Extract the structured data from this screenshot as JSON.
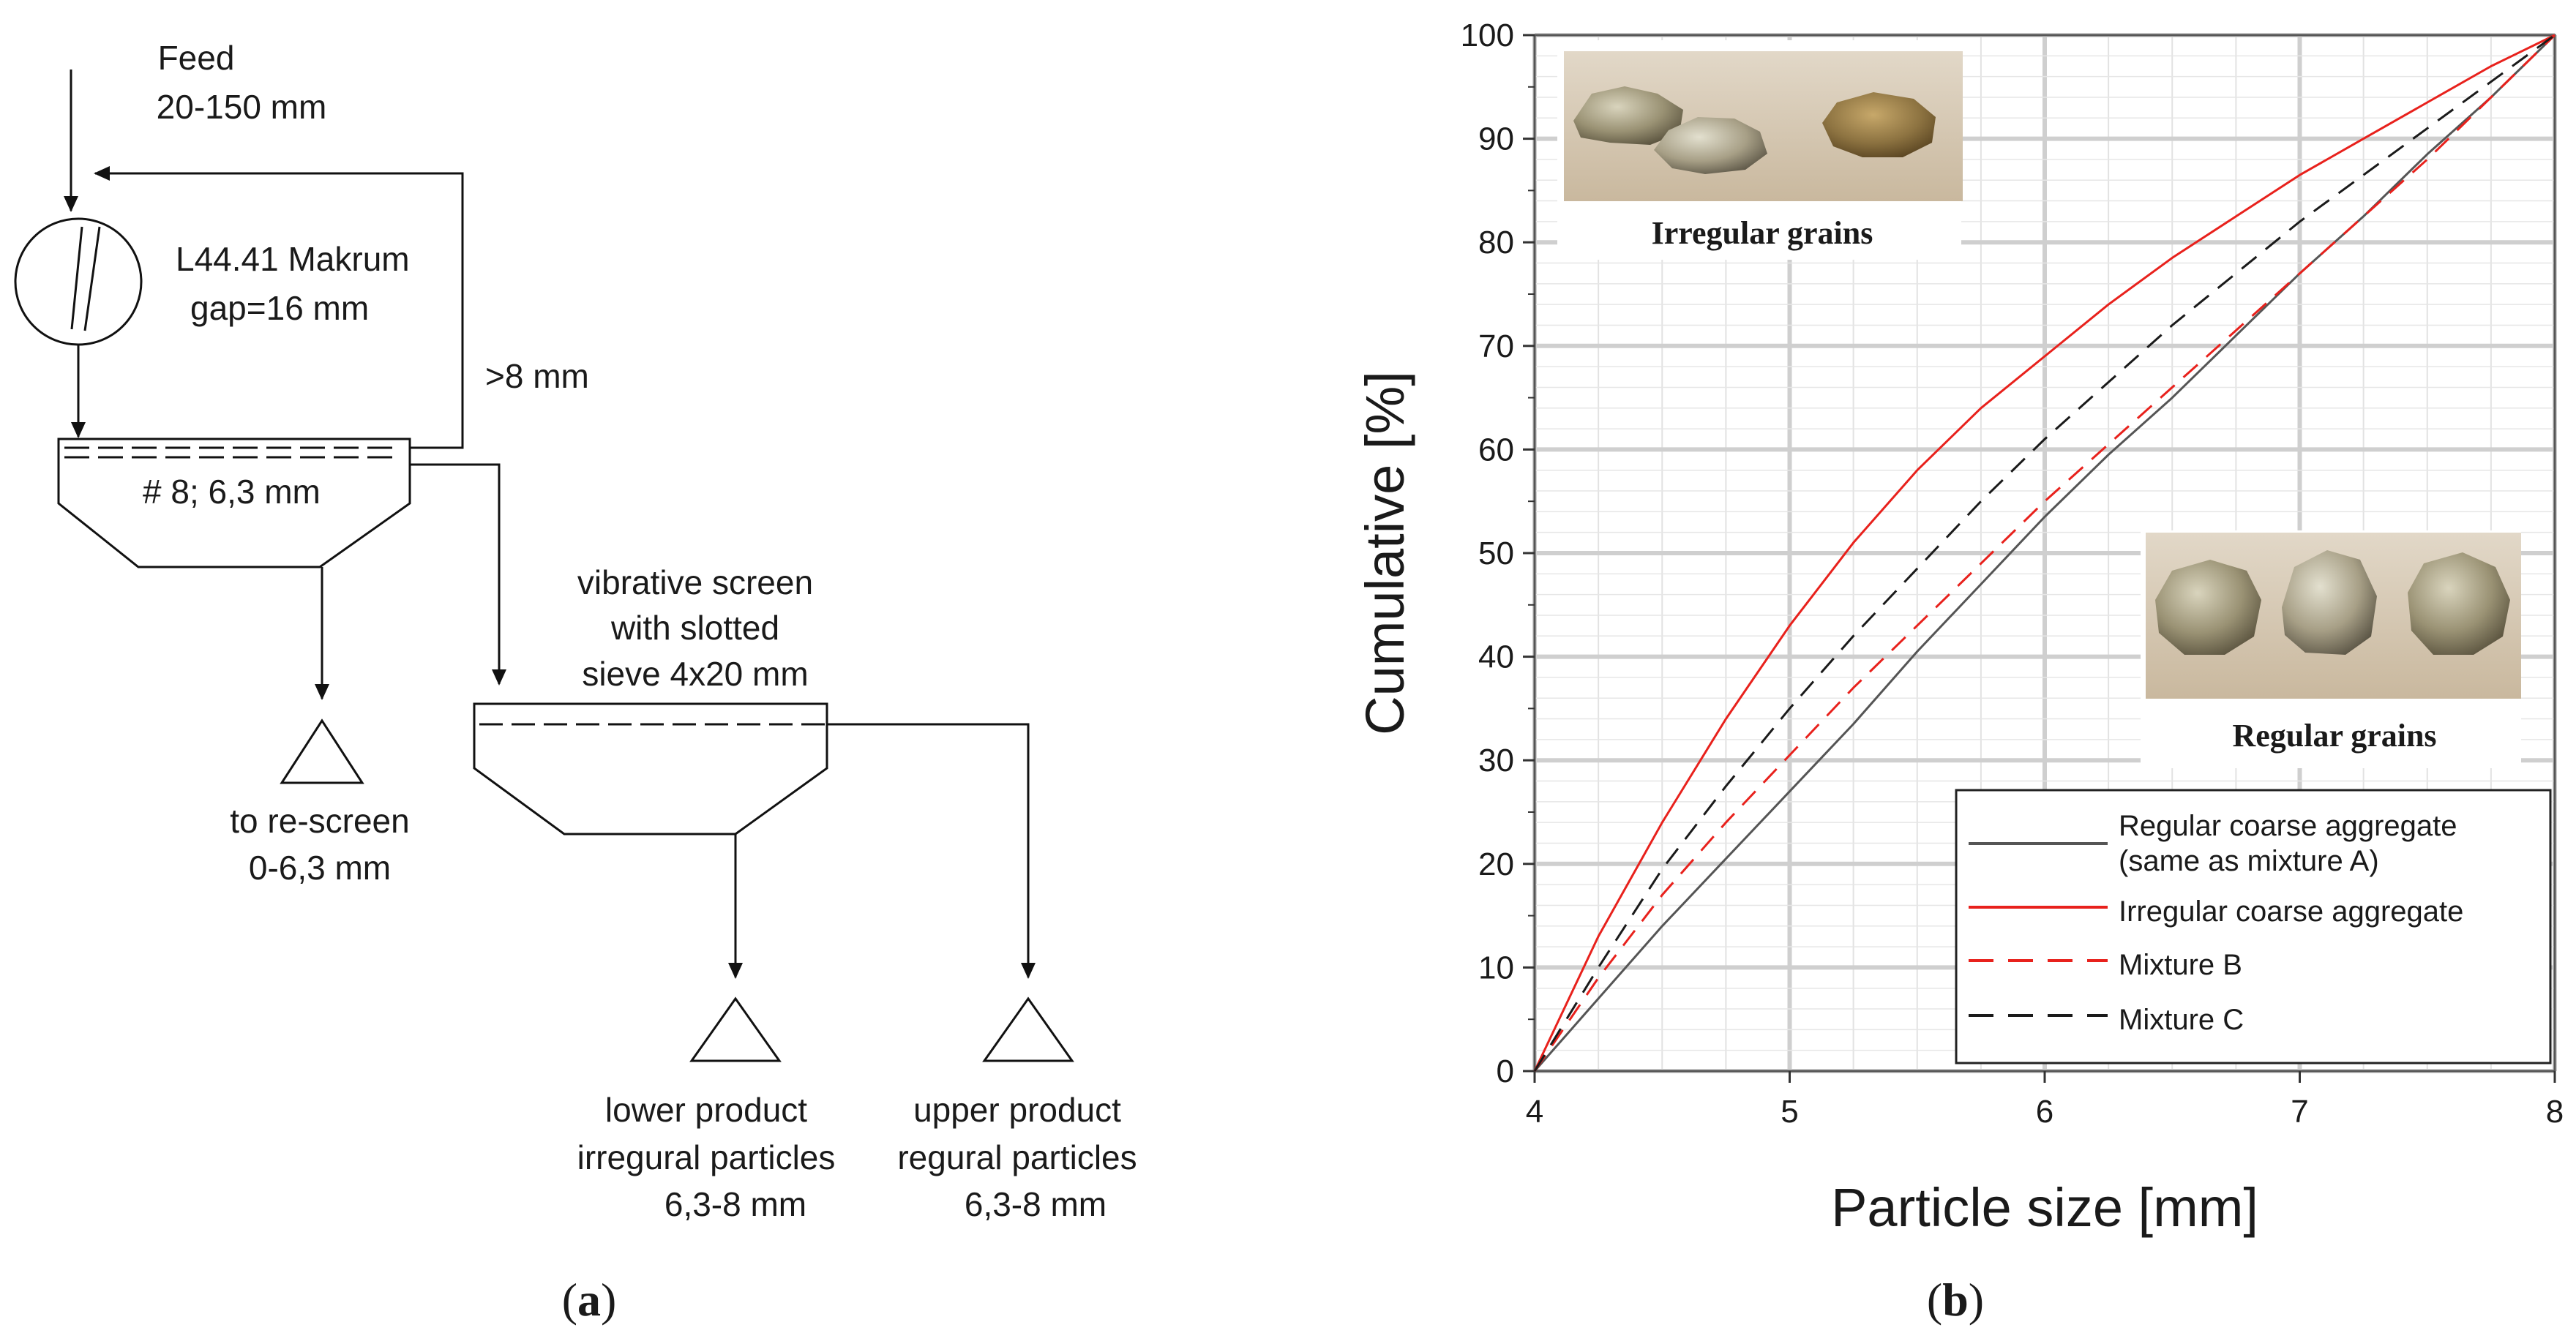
{
  "flowsheet": {
    "feed_label": "Feed",
    "feed_size": "20-150 mm",
    "crusher_name": "L44.41 Makrum",
    "crusher_gap": "gap=16 mm",
    "recycle_label": ">8 mm",
    "screen1_label": "# 8; 6,3 mm",
    "vib_screen_line1": "vibrative screen",
    "vib_screen_line2": "with slotted",
    "vib_screen_line3": "sieve 4x20 mm",
    "rescreen_line1": "to re-screen",
    "rescreen_line2": "0-6,3 mm",
    "lower_line1": "lower product",
    "lower_line2": "irregural particles",
    "lower_line3": "6,3-8 mm",
    "upper_line1": "upper product",
    "upper_line2": "regural particles",
    "upper_line3": "6,3-8 mm"
  },
  "panel_labels": {
    "a_open": "(",
    "a_letter": "a",
    "a_close": ")",
    "b_open": "(",
    "b_letter": "b",
    "b_close": ")"
  },
  "photos": {
    "irregular_caption": "Irregular grains",
    "regular_caption": "Regular grains"
  },
  "chart_data": {
    "type": "line",
    "xlabel": "Particle size [mm]",
    "ylabel": "Cumulative [%]",
    "xlim": [
      4,
      8
    ],
    "ylim": [
      0,
      100
    ],
    "x_ticks": [
      "4",
      "5",
      "6",
      "7",
      "8"
    ],
    "y_ticks": [
      "0",
      "10",
      "20",
      "30",
      "40",
      "50",
      "60",
      "70",
      "80",
      "90",
      "100"
    ],
    "grid": true,
    "legend_position": "bottom-right",
    "x": [
      4,
      4.25,
      4.5,
      4.75,
      5,
      5.25,
      5.5,
      5.75,
      6,
      6.25,
      6.5,
      6.75,
      7,
      7.25,
      7.5,
      7.75,
      8
    ],
    "series": [
      {
        "name": "Regular coarse aggregate",
        "name_line2": "(same as mixture A)",
        "color": "#555555",
        "dash": "solid",
        "values": [
          0,
          7,
          14,
          20.5,
          27,
          33.5,
          40.5,
          47,
          53.5,
          59.5,
          65,
          71,
          77,
          82.5,
          88.5,
          94,
          100
        ]
      },
      {
        "name": "Irregular coarse aggregate",
        "color": "#e8211c",
        "dash": "solid",
        "values": [
          0,
          13,
          24,
          34,
          43,
          51,
          58,
          64,
          69,
          74,
          78.5,
          82.5,
          86.5,
          90,
          93.5,
          97,
          100
        ]
      },
      {
        "name": "Mixture B",
        "color": "#e8211c",
        "dash": "dashed",
        "values": [
          0,
          9,
          17,
          24,
          30.5,
          37,
          43,
          49,
          55,
          60.5,
          66,
          71.5,
          77,
          82.5,
          88,
          94,
          100
        ]
      },
      {
        "name": "Mixture C",
        "color": "#1a1a1a",
        "dash": "dashed",
        "values": [
          0,
          10,
          19.5,
          27.5,
          35,
          42,
          48.5,
          55,
          61,
          66.5,
          72,
          77,
          82,
          86.5,
          91,
          95.5,
          100
        ]
      }
    ]
  }
}
